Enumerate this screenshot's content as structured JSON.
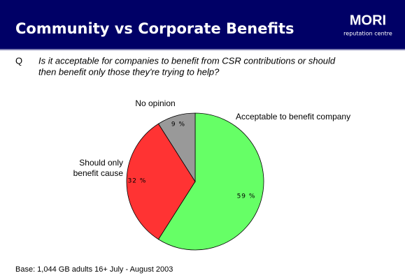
{
  "header": {
    "title": "Community vs Corporate Benefits",
    "logo": "MORI",
    "logo_sub": "reputation centre"
  },
  "question": {
    "label": "Q",
    "lines": [
      "Is it acceptable for companies to benefit from CSR contributions or should",
      "then benefit only those they're trying to help?"
    ]
  },
  "chart_data": {
    "type": "pie",
    "categories": [
      "Acceptable to benefit company",
      "Should only\nbenefit cause",
      "No opinion"
    ],
    "values": [
      59,
      32,
      9
    ],
    "value_labels": [
      "59 %",
      "32 %",
      "9 %"
    ],
    "colors": [
      "#66ff66",
      "#ff3333",
      "#999999"
    ]
  },
  "footnote": "Base: 1,044 GB adults 16+ July - August 2003"
}
